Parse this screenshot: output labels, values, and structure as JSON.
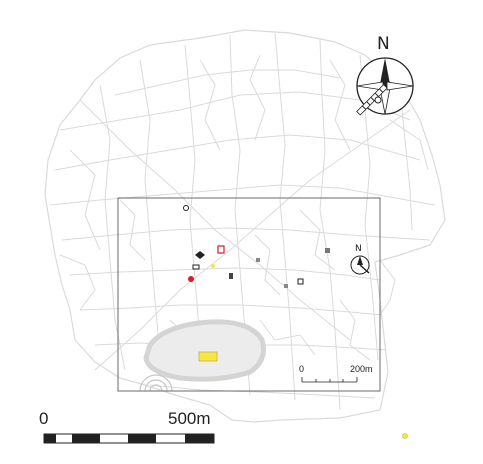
{
  "map": {
    "north_letter": "N",
    "scale_main": {
      "start_label": "0",
      "end_label": "500m"
    },
    "scale_inset": {
      "start_label": "0",
      "end_label": "200m"
    },
    "colors": {
      "streets": "#dadada",
      "frame": "#6a6a6a",
      "highlight": "#f4e64a",
      "marker_red": "#d0202a",
      "marker_dark": "#222222"
    },
    "icons": [
      "north-arrow-compass-icon",
      "north-arrow-small-icon",
      "poi-marker-icons",
      "scale-bar-icon"
    ]
  }
}
